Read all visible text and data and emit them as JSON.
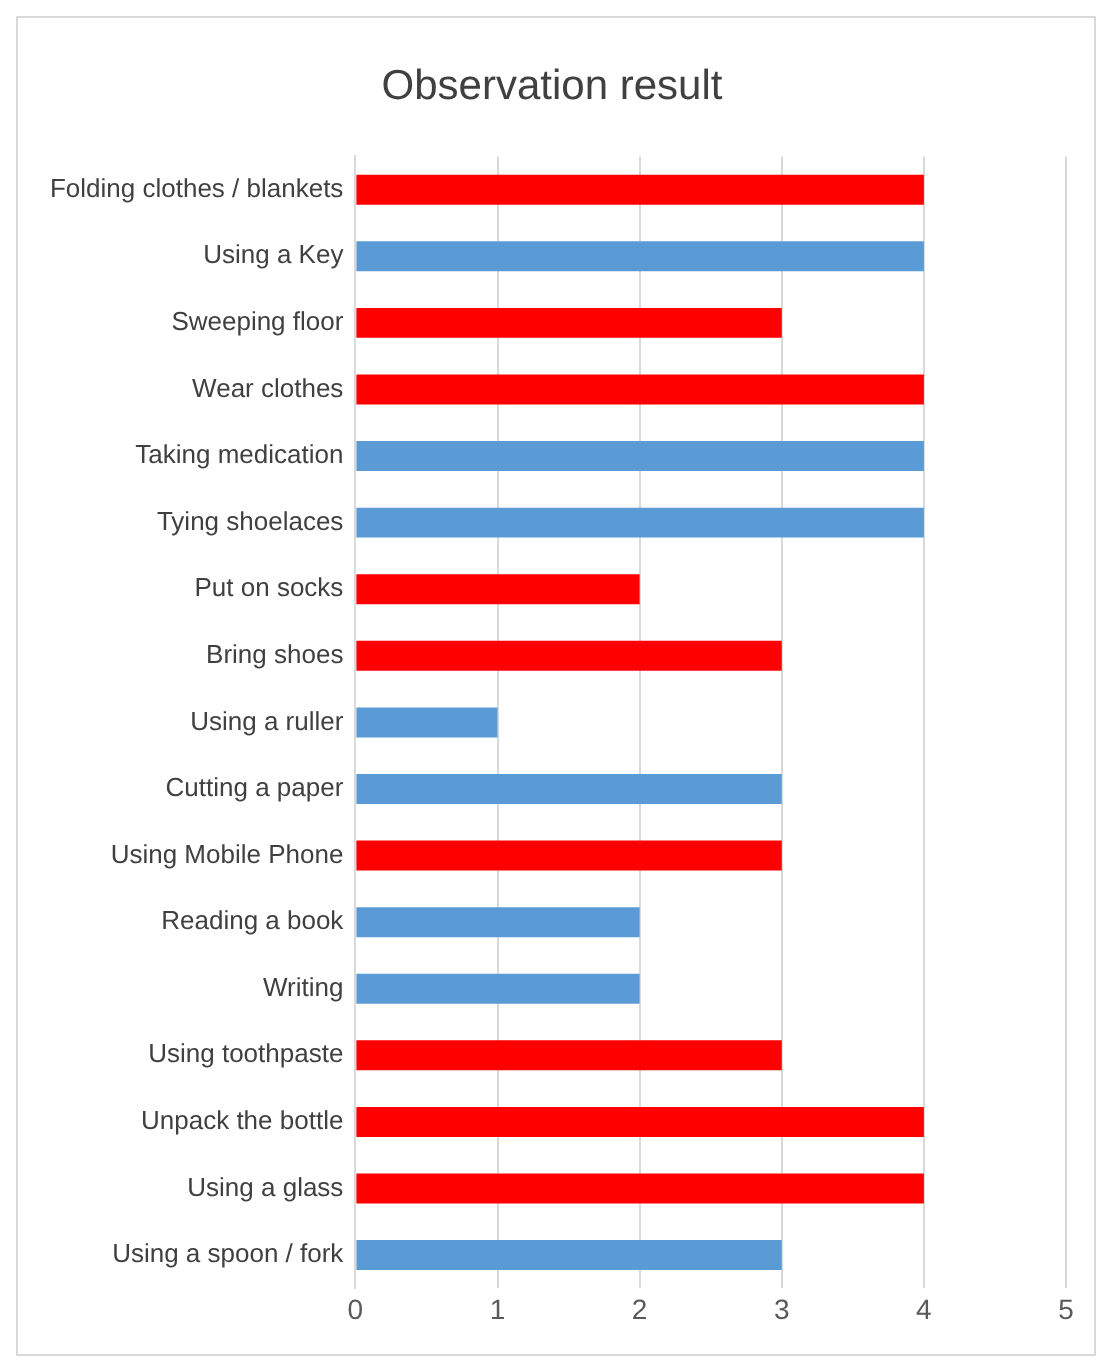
{
  "chart_data": {
    "type": "bar",
    "orientation": "horizontal",
    "title": "Observation result",
    "categories": [
      "Folding clothes / blankets",
      "Using a Key",
      "Sweeping floor",
      "Wear clothes",
      "Taking medication",
      "Tying shoelaces",
      "Put on socks",
      "Bring shoes",
      "Using a ruller",
      "Cutting a paper",
      "Using Mobile Phone",
      "Reading a book",
      "Writing",
      "Using toothpaste",
      "Unpack the bottle",
      "Using a glass",
      "Using a spoon / fork"
    ],
    "values": [
      4,
      4,
      3,
      4,
      4,
      4,
      2,
      3,
      1,
      3,
      3,
      2,
      2,
      3,
      4,
      4,
      3
    ],
    "colors": [
      "#ff0000",
      "#5b9bd5",
      "#ff0000",
      "#ff0000",
      "#5b9bd5",
      "#5b9bd5",
      "#ff0000",
      "#ff0000",
      "#5b9bd5",
      "#5b9bd5",
      "#ff0000",
      "#5b9bd5",
      "#5b9bd5",
      "#ff0000",
      "#ff0000",
      "#ff0000",
      "#5b9bd5"
    ],
    "xlim": [
      0,
      5
    ],
    "xticks": [
      0,
      1,
      2,
      3,
      4,
      5
    ],
    "grid": "x"
  }
}
